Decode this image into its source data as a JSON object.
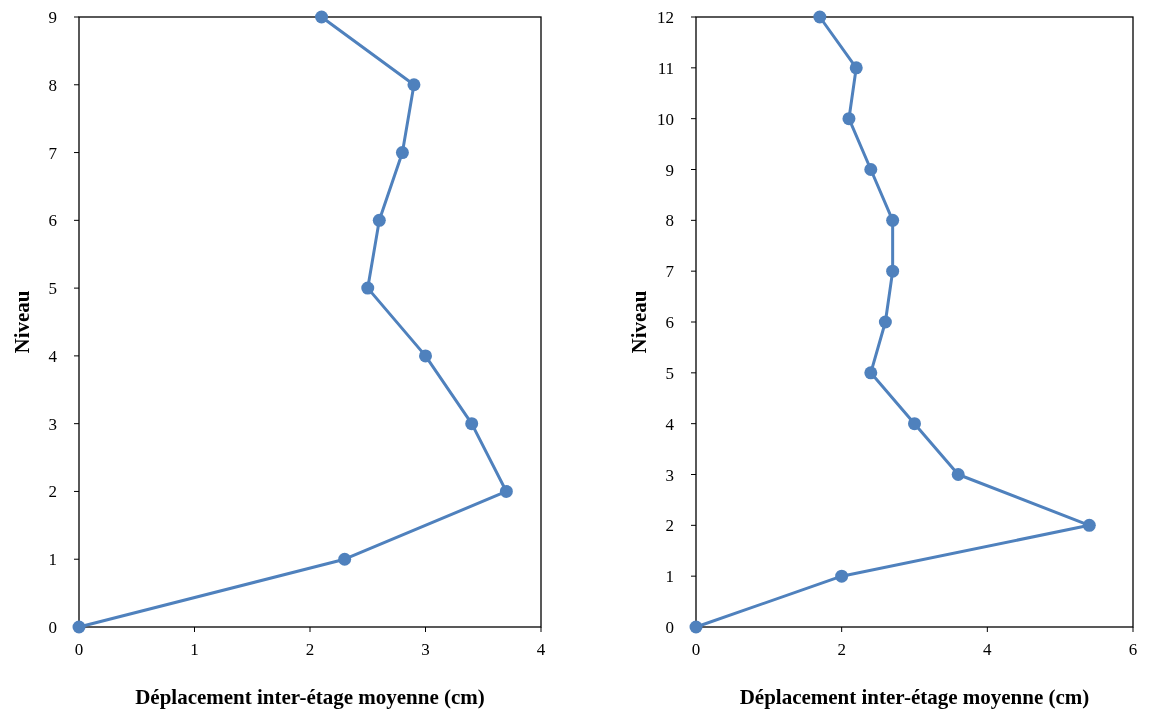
{
  "chart_data": [
    {
      "type": "line",
      "xlabel": "Déplacement inter-étage moyenne (cm)",
      "ylabel": "Niveau",
      "xlim": [
        0,
        4
      ],
      "xticks": [
        0,
        1,
        2,
        3,
        4
      ],
      "ylim": [
        0,
        9
      ],
      "yticks": [
        0,
        1,
        2,
        3,
        4,
        5,
        6,
        7,
        8,
        9
      ],
      "grid": false,
      "marker": "circle",
      "line_style": "solid",
      "series": [
        {
          "color": "#4f81bd",
          "x": [
            0,
            2.3,
            3.7,
            3.4,
            3.0,
            2.5,
            2.6,
            2.8,
            2.9,
            2.1
          ],
          "values": [
            0,
            1,
            2,
            3,
            4,
            5,
            6,
            7,
            8,
            9
          ]
        }
      ]
    },
    {
      "type": "line",
      "xlabel": "Déplacement inter-étage moyenne (cm)",
      "ylabel": "Niveau",
      "xlim": [
        0,
        6
      ],
      "xticks": [
        0,
        2,
        4,
        6
      ],
      "ylim": [
        0,
        12
      ],
      "yticks": [
        0,
        1,
        2,
        3,
        4,
        5,
        6,
        7,
        8,
        9,
        10,
        11,
        12
      ],
      "grid": false,
      "marker": "circle",
      "line_style": "solid",
      "series": [
        {
          "color": "#4f81bd",
          "x": [
            0,
            2.0,
            5.4,
            3.6,
            3.0,
            2.4,
            2.6,
            2.7,
            2.7,
            2.4,
            2.1,
            2.2,
            1.7
          ],
          "values": [
            0,
            1,
            2,
            3,
            4,
            5,
            6,
            7,
            8,
            9,
            10,
            11,
            12
          ]
        }
      ]
    }
  ]
}
